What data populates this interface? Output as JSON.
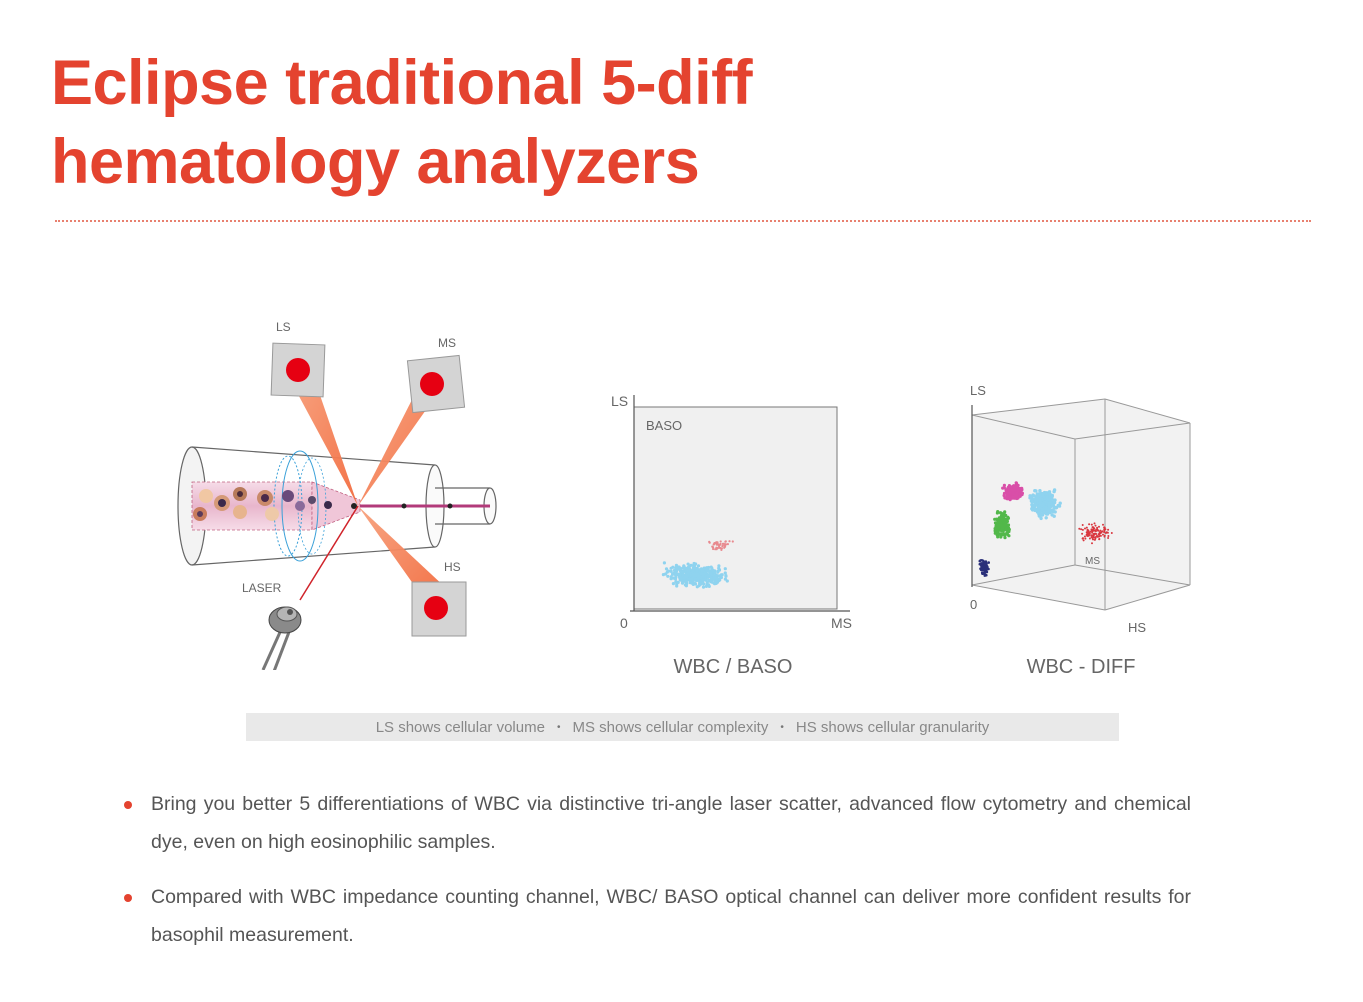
{
  "title": {
    "line1": "Eclipse traditional 5-diff",
    "line2": "hematology analyzers"
  },
  "diagram": {
    "labels": {
      "ls": "LS",
      "ms": "MS",
      "hs": "HS",
      "laser": "LASER"
    }
  },
  "charts": {
    "baso": {
      "caption": "WBC / BASO",
      "y_label": "LS",
      "x_label": "MS",
      "origin": "0",
      "region_label": "BASO"
    },
    "diff": {
      "caption": "WBC - DIFF",
      "y_label": "LS",
      "x_label": "HS",
      "z_label": "MS",
      "origin": "0"
    }
  },
  "info_bar": {
    "items": [
      "LS shows cellular volume",
      "MS shows cellular complexity",
      "HS shows cellular granularity"
    ],
    "separator": "•"
  },
  "bullets": [
    "Bring you better 5 differentiations of WBC via distinctive tri-angle laser scatter, advanced flow cytometry and chemical dye, even on high eosinophilic samples.",
    "Compared with WBC impedance counting channel, WBC/ BASO optical channel can deliver more confident results for basophil measurement."
  ],
  "colors": {
    "accent": "#e4432f",
    "laser_red": "#e60012",
    "cluster_blue": "#8fd3ef",
    "cluster_pink": "#d94fa8",
    "cluster_green": "#52b84a",
    "cluster_navy": "#2a2f7a",
    "cluster_red": "#d9363e"
  }
}
